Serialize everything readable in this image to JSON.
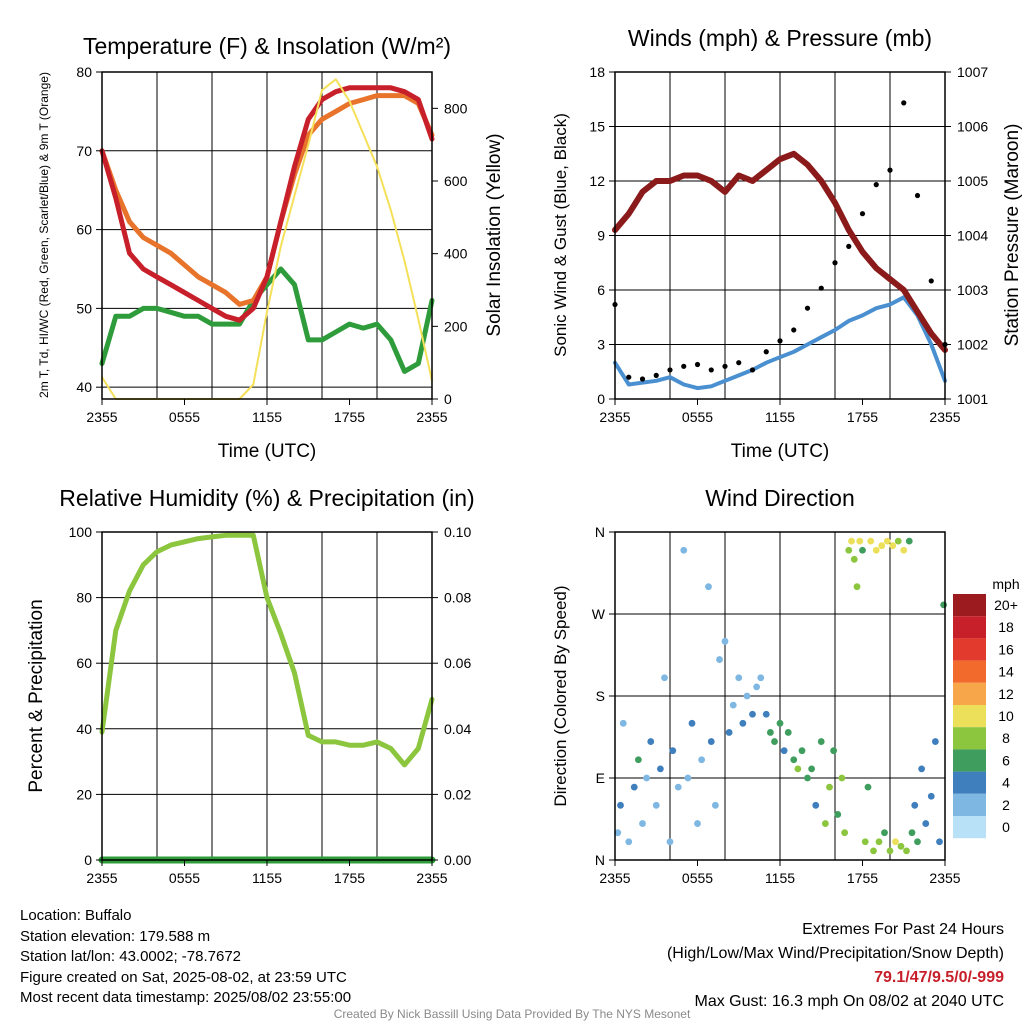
{
  "chart_data": [
    {
      "type": "line",
      "title": "Temperature (F) & Insolation (W/m²)",
      "xlabel": "Time (UTC)",
      "ylabel": "2m T, Td, HI/WC (Red, Green, Scarlet/Blue) & 9m T (Orange)",
      "y2label": "Solar Insolation (Yellow)",
      "x_ticks": [
        "2355",
        "0555",
        "1155",
        "1755",
        "2355"
      ],
      "ylim": [
        38.5,
        80
      ],
      "y_ticks": [
        40,
        50,
        60,
        70,
        80
      ],
      "y2lim": [
        0,
        900
      ],
      "y2_ticks": [
        0,
        200,
        400,
        600,
        800
      ],
      "grid": true,
      "x_hours": [
        0,
        1,
        2,
        3,
        4,
        5,
        6,
        7,
        8,
        9,
        10,
        11,
        12,
        13,
        14,
        15,
        16,
        17,
        18,
        19,
        20,
        21,
        22,
        23,
        24
      ],
      "series": [
        {
          "color": "#2e9c3a",
          "axis": "left",
          "values": [
            43,
            49,
            49,
            50,
            50,
            49.5,
            49,
            49,
            48,
            48,
            48,
            51,
            53,
            55,
            53,
            46,
            46,
            47,
            48,
            47.5,
            48,
            46,
            42,
            43,
            51
          ]
        },
        {
          "color": "#e8742c",
          "axis": "left",
          "values": [
            70,
            65,
            61,
            59,
            58,
            57,
            55.5,
            54,
            53,
            52,
            50.5,
            51,
            54,
            61,
            67,
            72,
            74,
            75,
            76,
            76.5,
            77,
            77,
            77,
            76,
            72
          ]
        },
        {
          "color": "#c8202a",
          "axis": "left",
          "values": [
            70,
            64,
            57,
            55,
            54,
            53,
            52,
            51,
            50,
            49,
            48.5,
            50,
            54,
            61,
            68,
            74,
            76.5,
            77.5,
            78,
            78,
            78,
            78,
            77.5,
            76.5,
            71.5
          ]
        },
        {
          "color": "#f5e05a",
          "axis": "right",
          "values": [
            60,
            0,
            0,
            0,
            0,
            0,
            0,
            0,
            0,
            0,
            0,
            40,
            240,
            420,
            560,
            700,
            850,
            880,
            820,
            730,
            640,
            520,
            380,
            220,
            50
          ]
        }
      ]
    },
    {
      "type": "scatter",
      "title": "Winds (mph) & Pressure (mb)",
      "xlabel": "Time (UTC)",
      "ylabel": "Sonic Wind & Gust (Blue, Black)",
      "y2label": "Station Pressure (Maroon)",
      "x_ticks": [
        "2355",
        "0555",
        "1155",
        "1755",
        "2355"
      ],
      "ylim": [
        0,
        18
      ],
      "y_ticks": [
        0,
        3,
        6,
        9,
        12,
        15,
        18
      ],
      "y2lim": [
        1001,
        1007
      ],
      "y2_ticks": [
        1001,
        1002,
        1003,
        1004,
        1005,
        1006,
        1007
      ],
      "grid": true,
      "x_hours": [
        0,
        1,
        2,
        3,
        4,
        5,
        6,
        7,
        8,
        9,
        10,
        11,
        12,
        13,
        14,
        15,
        16,
        17,
        18,
        19,
        20,
        21,
        22,
        23,
        24
      ],
      "series": [
        {
          "color": "#4a90d0",
          "axis": "left",
          "values": [
            2.0,
            0.8,
            0.9,
            1.0,
            1.2,
            0.8,
            0.6,
            0.7,
            1.0,
            1.3,
            1.6,
            2.0,
            2.3,
            2.6,
            3.0,
            3.4,
            3.8,
            4.3,
            4.6,
            5.0,
            5.2,
            5.6,
            4.6,
            3.0,
            1.0
          ]
        },
        {
          "color": "#8b1a1a",
          "axis": "right",
          "values": [
            1004.1,
            1004.4,
            1004.8,
            1005.0,
            1005.0,
            1005.1,
            1005.1,
            1005.0,
            1004.8,
            1005.1,
            1005.0,
            1005.2,
            1005.4,
            1005.5,
            1005.3,
            1005.0,
            1004.6,
            1004.1,
            1003.7,
            1003.4,
            1003.2,
            1003.0,
            1002.6,
            1002.2,
            1001.9
          ]
        },
        {
          "color": "#000000",
          "axis": "left",
          "values": [
            5.2,
            1.2,
            1.1,
            1.3,
            1.6,
            1.8,
            1.9,
            1.6,
            1.8,
            2.0,
            1.6,
            2.6,
            3.2,
            3.8,
            5.0,
            6.1,
            7.5,
            8.4,
            10.2,
            11.8,
            12.6,
            16.3,
            11.2,
            6.5,
            3.0
          ]
        }
      ]
    },
    {
      "type": "line",
      "title": "Relative Humidity (%) & Precipitation (in)",
      "xlabel": "",
      "ylabel": "Percent & Precipitation",
      "x_ticks": [
        "2355",
        "0555",
        "1155",
        "1755",
        "2355"
      ],
      "ylim": [
        0,
        100
      ],
      "y_ticks": [
        0,
        20,
        40,
        60,
        80,
        100
      ],
      "y2lim": [
        0,
        0.1
      ],
      "y2_ticks": [
        "0.00",
        "0.02",
        "0.04",
        "0.06",
        "0.08",
        "0.10"
      ],
      "grid": true,
      "x_hours": [
        0,
        1,
        2,
        3,
        4,
        5,
        6,
        7,
        8,
        9,
        10,
        11,
        12,
        13,
        14,
        15,
        16,
        17,
        18,
        19,
        20,
        21,
        22,
        23,
        24
      ],
      "series": [
        {
          "color": "#8cc63f",
          "axis": "left",
          "values": [
            39,
            70,
            82,
            90,
            94,
            96,
            97,
            98,
            98.5,
            99,
            99,
            99,
            80,
            69,
            57,
            38,
            36,
            36,
            35,
            35,
            36,
            34,
            29,
            34,
            49
          ]
        },
        {
          "color": "#2e9c3a",
          "axis": "right",
          "values": [
            0,
            0,
            0,
            0,
            0,
            0,
            0,
            0,
            0,
            0,
            0,
            0,
            0,
            0,
            0,
            0,
            0,
            0,
            0,
            0,
            0,
            0,
            0,
            0,
            0
          ]
        }
      ]
    },
    {
      "type": "scatter",
      "title": "Wind Direction",
      "ylabel": "Direction (Colored By Speed)",
      "x_ticks": [
        "2355",
        "0555",
        "1155",
        "1755",
        "2355"
      ],
      "y_ticks": [
        "N",
        "E",
        "S",
        "W",
        "N"
      ],
      "ylim": [
        0,
        360
      ],
      "grid": true,
      "legend_title": "mph",
      "legend": [
        {
          "label": "20+",
          "color": "#9b1b1e"
        },
        {
          "label": "18",
          "color": "#c8202a"
        },
        {
          "label": "16",
          "color": "#e23b2e"
        },
        {
          "label": "14",
          "color": "#f26b2d"
        },
        {
          "label": "12",
          "color": "#f8a64a"
        },
        {
          "label": "10",
          "color": "#ece05a"
        },
        {
          "label": "8",
          "color": "#8cc63f"
        },
        {
          "label": "6",
          "color": "#3f9e5e"
        },
        {
          "label": "4",
          "color": "#3f7fbe"
        },
        {
          "label": "2",
          "color": "#7fb7e3"
        },
        {
          "label": "0",
          "color": "#b8e0f7"
        }
      ],
      "points": [
        [
          0.2,
          30,
          1
        ],
        [
          0.4,
          60,
          2
        ],
        [
          0.6,
          150,
          1
        ],
        [
          1.0,
          20,
          1
        ],
        [
          1.4,
          80,
          2
        ],
        [
          1.7,
          110,
          3
        ],
        [
          2.0,
          40,
          1
        ],
        [
          2.3,
          90,
          1
        ],
        [
          2.6,
          130,
          2
        ],
        [
          3.0,
          60,
          1
        ],
        [
          3.3,
          100,
          2
        ],
        [
          3.6,
          200,
          1
        ],
        [
          4.0,
          20,
          1
        ],
        [
          4.2,
          120,
          2
        ],
        [
          4.6,
          80,
          1
        ],
        [
          5.0,
          340,
          1
        ],
        [
          5.3,
          90,
          1
        ],
        [
          5.6,
          150,
          2
        ],
        [
          6.0,
          40,
          1
        ],
        [
          6.3,
          110,
          1
        ],
        [
          6.8,
          300,
          1
        ],
        [
          7.0,
          130,
          2
        ],
        [
          7.3,
          60,
          1
        ],
        [
          7.6,
          220,
          1
        ],
        [
          8.0,
          240,
          1
        ],
        [
          8.3,
          140,
          2
        ],
        [
          8.6,
          170,
          1
        ],
        [
          9.0,
          200,
          1
        ],
        [
          9.3,
          150,
          2
        ],
        [
          9.6,
          180,
          1
        ],
        [
          10.0,
          160,
          2
        ],
        [
          10.3,
          190,
          1
        ],
        [
          10.6,
          200,
          1
        ],
        [
          11.0,
          160,
          2
        ],
        [
          11.3,
          140,
          3
        ],
        [
          11.6,
          130,
          3
        ],
        [
          12.0,
          150,
          3
        ],
        [
          12.3,
          120,
          2
        ],
        [
          12.6,
          140,
          3
        ],
        [
          13.0,
          110,
          3
        ],
        [
          13.3,
          100,
          4
        ],
        [
          13.6,
          120,
          3
        ],
        [
          14.0,
          90,
          3
        ],
        [
          14.3,
          100,
          3
        ],
        [
          14.6,
          60,
          2
        ],
        [
          15.0,
          130,
          3
        ],
        [
          15.3,
          40,
          4
        ],
        [
          15.6,
          80,
          4
        ],
        [
          15.9,
          120,
          3
        ],
        [
          16.2,
          50,
          3
        ],
        [
          16.5,
          90,
          4
        ],
        [
          16.7,
          30,
          4
        ],
        [
          17.0,
          340,
          4
        ],
        [
          17.2,
          350,
          5
        ],
        [
          17.4,
          330,
          4
        ],
        [
          17.6,
          300,
          4
        ],
        [
          17.8,
          350,
          5
        ],
        [
          18.0,
          340,
          3
        ],
        [
          18.2,
          20,
          4
        ],
        [
          18.4,
          80,
          3
        ],
        [
          18.6,
          350,
          5
        ],
        [
          18.8,
          10,
          4
        ],
        [
          19.0,
          340,
          5
        ],
        [
          19.2,
          20,
          4
        ],
        [
          19.4,
          345,
          5
        ],
        [
          19.6,
          30,
          3
        ],
        [
          19.8,
          350,
          5
        ],
        [
          20.0,
          10,
          4
        ],
        [
          20.2,
          345,
          5
        ],
        [
          20.4,
          20,
          5
        ],
        [
          20.6,
          350,
          4
        ],
        [
          20.8,
          15,
          4
        ],
        [
          21.0,
          340,
          5
        ],
        [
          21.2,
          10,
          4
        ],
        [
          21.4,
          350,
          3
        ],
        [
          21.6,
          30,
          3
        ],
        [
          21.8,
          60,
          2
        ],
        [
          22.0,
          20,
          3
        ],
        [
          22.3,
          100,
          2
        ],
        [
          22.6,
          40,
          2
        ],
        [
          23.0,
          70,
          2
        ],
        [
          23.3,
          130,
          2
        ],
        [
          23.6,
          20,
          2
        ],
        [
          23.9,
          280,
          3
        ]
      ]
    }
  ],
  "footer": {
    "location": "Location: Buffalo",
    "elevation": "Station elevation: 179.588 m",
    "latlon": "Station lat/lon: 43.0002; -78.7672",
    "created": "Figure created on Sat, 2025-08-02, at 23:59 UTC",
    "recent": "Most recent data timestamp: 2025/08/02 23:55:00",
    "extremes_title": "Extremes For Past 24 Hours",
    "extremes_subtitle": "(High/Low/Max Wind/Precipitation/Snow Depth)",
    "extremes_values": "79.1/47/9.5/0/-999",
    "max_gust": "Max Gust: 16.3 mph On 08/02 at 2040 UTC",
    "credit": "Created By Nick Bassill Using Data Provided By The NYS Mesonet"
  }
}
